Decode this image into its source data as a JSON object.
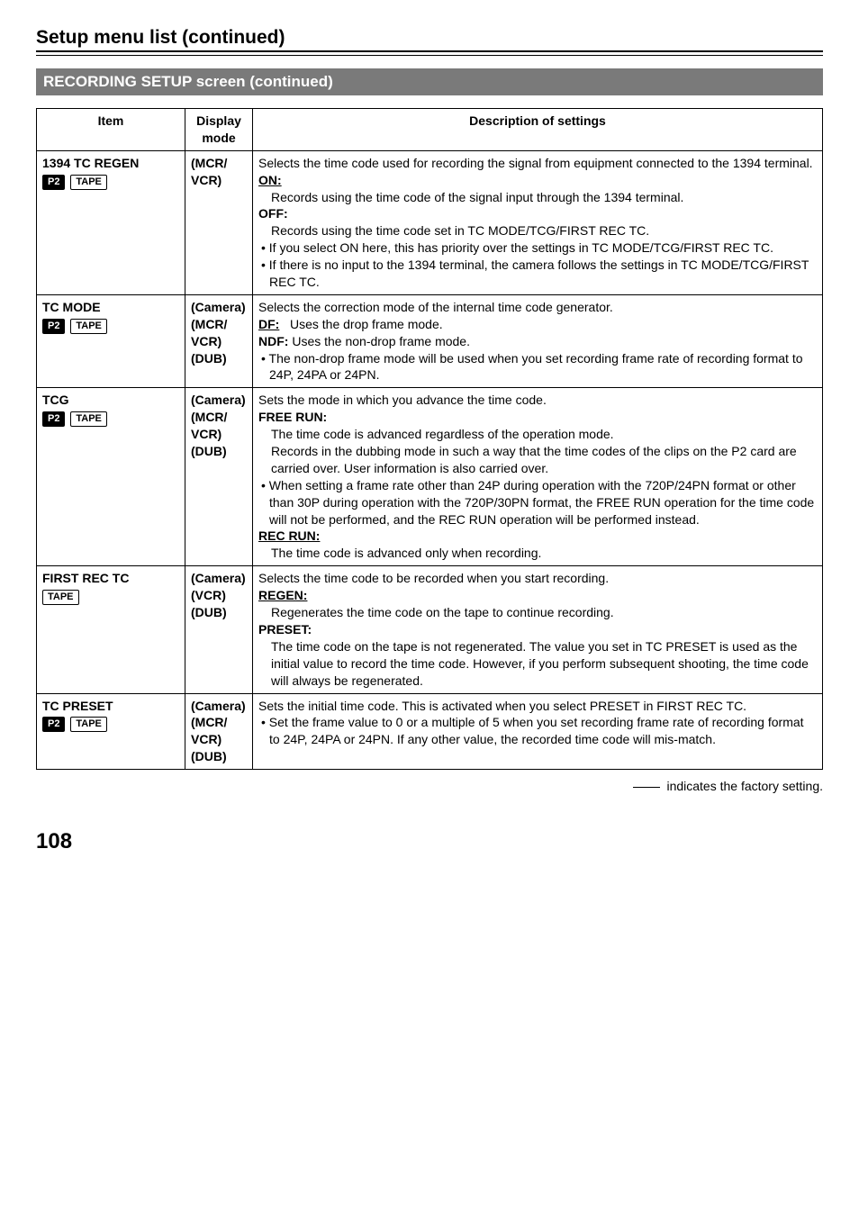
{
  "header": {
    "section_title": "Setup menu list (continued)",
    "screen_bar": "RECORDING SETUP screen (continued)"
  },
  "table": {
    "headers": {
      "item": "Item",
      "mode": "Display mode",
      "desc": "Description of settings"
    },
    "rows": [
      {
        "item_name": "1394 TC REGEN",
        "badge_dark": "P2",
        "badge_outline": "TAPE",
        "mode_lines": [
          "(MCR/",
          "VCR)"
        ],
        "desc": {
          "intro": "Selects the time code used for recording the signal from equipment connected to the 1394 terminal.",
          "on_label": "ON:",
          "on_text": "Records using the time code of the signal input through the 1394 terminal.",
          "off_label": "OFF:",
          "off_text": "Records using the time code set in TC MODE/TCG/FIRST REC TC.",
          "bullet1": "• If you select ON here, this has priority over the settings in TC MODE/TCG/FIRST REC TC.",
          "bullet2": "• If there is no input to the 1394 terminal, the camera follows the settings in TC MODE/TCG/FIRST REC TC."
        }
      },
      {
        "item_name": "TC MODE",
        "badge_dark": "P2",
        "badge_outline": "TAPE",
        "mode_lines": [
          "(Camera)",
          "(MCR/",
          "VCR)",
          "(DUB)"
        ],
        "desc": {
          "intro": "Selects the correction mode of the internal time code generator.",
          "df_label": "DF:",
          "df_text": "Uses the drop frame mode.",
          "ndf_label": "NDF:",
          "ndf_text": " Uses the non-drop frame mode.",
          "bullet1": "• The non-drop frame mode will be used when you set recording frame rate of recording format to 24P, 24PA or 24PN."
        }
      },
      {
        "item_name": "TCG",
        "badge_dark": "P2",
        "badge_outline": "TAPE",
        "mode_lines": [
          "(Camera)",
          "(MCR/",
          "VCR)",
          "(DUB)"
        ],
        "desc": {
          "intro": "Sets the mode in which you advance the time code.",
          "free_label": "FREE RUN:",
          "free_text1": "The time code is advanced regardless of the operation mode.",
          "free_text2": "Records in the dubbing mode in such a way that the time codes of the clips on the P2 card are carried over. User information is also carried over.",
          "bullet1": "• When setting a frame rate other than 24P during operation with the 720P/24PN format or other than 30P during operation with the 720P/30PN format, the FREE RUN operation for the time code will not be performed, and the REC RUN operation will be performed instead.",
          "rec_label": "REC RUN:",
          "rec_text": "The time code is advanced only when recording."
        }
      },
      {
        "item_name": "FIRST REC TC",
        "badge_outline": "TAPE",
        "mode_lines": [
          "(Camera)",
          "(VCR)",
          "(DUB)"
        ],
        "desc": {
          "intro": "Selects the time code to be recorded when you start recording.",
          "regen_label": "REGEN:",
          "regen_text": "Regenerates the time code on the tape to continue recording.",
          "preset_label": "PRESET:",
          "preset_text": "The time code on the tape is not regenerated. The value you set in TC PRESET is used as the initial value to record the time code. However, if you perform subsequent shooting, the time code will always be regenerated."
        }
      },
      {
        "item_name": "TC PRESET",
        "badge_dark": "P2",
        "badge_outline": "TAPE",
        "mode_lines": [
          "(Camera)",
          "(MCR/",
          "VCR)",
          "(DUB)"
        ],
        "desc": {
          "intro": "Sets the initial time code. This is activated when you select PRESET in FIRST REC TC.",
          "bullet1": "• Set the frame value to 0 or a multiple of 5 when you set recording frame rate of recording format to 24P, 24PA or 24PN. If any other value, the recorded time code will mis-match."
        }
      }
    ]
  },
  "legend_text": " indicates the factory setting.",
  "page_number": "108"
}
